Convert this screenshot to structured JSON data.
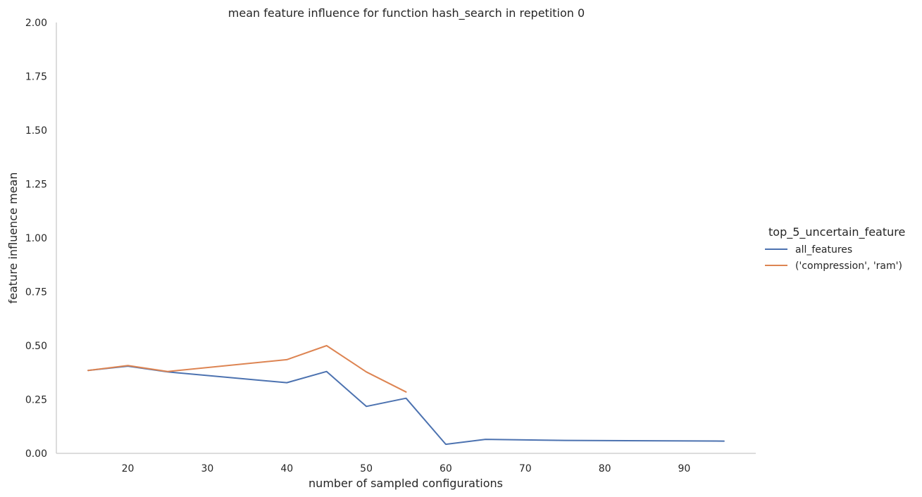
{
  "chart_data": {
    "type": "line",
    "title": "mean feature influence for function hash_search in repetition 0",
    "xlabel": "number of sampled configurations",
    "ylabel": "feature influence mean",
    "xlim": [
      11,
      99
    ],
    "ylim": [
      0,
      2.0
    ],
    "x_ticks": [
      20,
      30,
      40,
      50,
      60,
      70,
      80,
      90
    ],
    "y_ticks": [
      0.0,
      0.25,
      0.5,
      0.75,
      1.0,
      1.25,
      1.5,
      1.75,
      2.0
    ],
    "x_tick_labels": [
      "20",
      "30",
      "40",
      "50",
      "60",
      "70",
      "80",
      "90"
    ],
    "y_tick_labels": [
      "0.00",
      "0.25",
      "0.50",
      "0.75",
      "1.00",
      "1.25",
      "1.50",
      "1.75",
      "2.00"
    ],
    "grid": false,
    "legend": {
      "title": "top_5_uncertain_feature",
      "placement": "right"
    },
    "series": [
      {
        "name": "all_features",
        "color": "#4c72b0",
        "x": [
          15,
          20,
          25,
          40,
          45,
          50,
          55,
          60,
          65,
          75,
          95
        ],
        "y": [
          0.385,
          0.405,
          0.378,
          0.328,
          0.38,
          0.218,
          0.256,
          0.042,
          0.065,
          0.06,
          0.057
        ]
      },
      {
        "name": "('compression', 'ram')",
        "color": "#dd8452",
        "x": [
          15,
          20,
          25,
          40,
          45,
          50,
          55
        ],
        "y": [
          0.385,
          0.408,
          0.38,
          0.435,
          0.5,
          0.378,
          0.285
        ]
      }
    ]
  }
}
